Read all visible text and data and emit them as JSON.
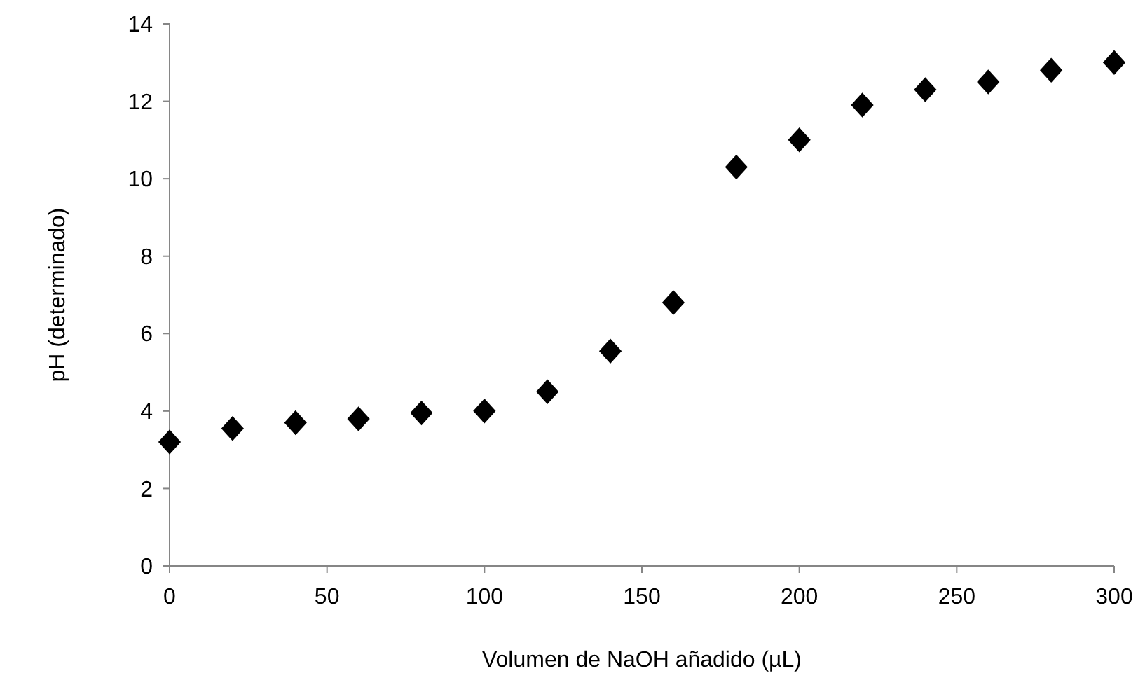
{
  "chart_data": {
    "type": "scatter",
    "xlabel": "Volumen de NaOH añadido (µL)",
    "ylabel": "pH (determinado)",
    "x": [
      0,
      20,
      40,
      60,
      80,
      100,
      120,
      140,
      160,
      180,
      200,
      220,
      240,
      260,
      280,
      300
    ],
    "series": [
      {
        "color": "#000000",
        "values": [
          3.2,
          3.55,
          3.7,
          3.8,
          3.95,
          4.0,
          4.5,
          5.55,
          6.8,
          10.3,
          11.0,
          11.9,
          12.3,
          12.5,
          12.8,
          13.0
        ]
      }
    ],
    "xlim": [
      0,
      300
    ],
    "xticks": [
      0,
      50,
      100,
      150,
      200,
      250,
      300
    ],
    "ylim": [
      0,
      14
    ],
    "yticks": [
      0,
      2,
      4,
      6,
      8,
      10,
      12,
      14
    ],
    "marker": "diamond"
  }
}
